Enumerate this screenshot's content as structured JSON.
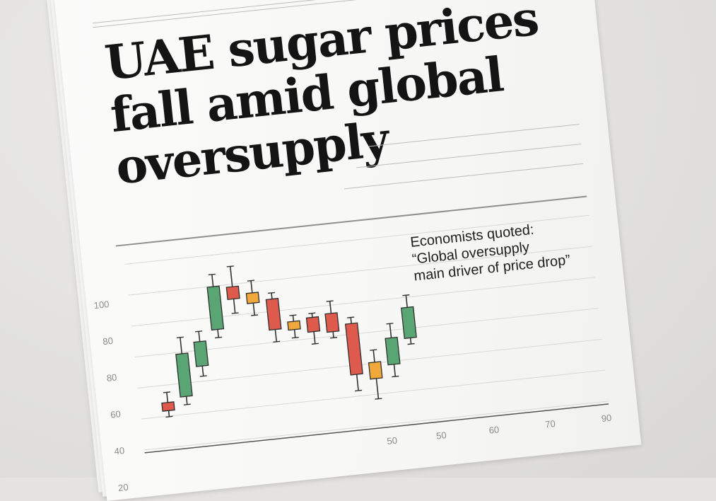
{
  "newspaper": {
    "headline": [
      "UAE sugar prices",
      "fall amid global",
      "oversupply"
    ],
    "callout": [
      "Economists quoted:",
      "“Global oversupply",
      "main driver of price drop”"
    ]
  },
  "colors": {
    "up": "#5aa574",
    "down": "#dd5a4c",
    "neutral": "#f0a83a",
    "paper": "#f9f9f8",
    "ink": "#141414"
  },
  "chart_data": {
    "type": "candlestick",
    "y_tick_labels": [
      "20",
      "40",
      "60",
      "80",
      "80",
      "100"
    ],
    "x_tick_labels": [
      "50",
      "50",
      "60",
      "70",
      "90"
    ],
    "candles": [
      {
        "open": 44,
        "close": 40,
        "high": 49,
        "low": 37,
        "color": "down"
      },
      {
        "open": 46,
        "close": 67,
        "high": 75,
        "low": 42,
        "color": "up"
      },
      {
        "open": 60,
        "close": 72,
        "high": 77,
        "low": 55,
        "color": "up"
      },
      {
        "open": 77,
        "close": 98,
        "high": 104,
        "low": 73,
        "color": "up"
      },
      {
        "open": 97,
        "close": 91,
        "high": 107,
        "low": 84,
        "color": "down"
      },
      {
        "open": 93,
        "close": 88,
        "high": 99,
        "low": 82,
        "color": "neutral"
      },
      {
        "open": 89,
        "close": 74,
        "high": 92,
        "low": 68,
        "color": "down"
      },
      {
        "open": 77,
        "close": 73,
        "high": 80,
        "low": 69,
        "color": "neutral"
      },
      {
        "open": 78,
        "close": 71,
        "high": 80,
        "low": 65,
        "color": "down"
      },
      {
        "open": 79,
        "close": 70,
        "high": 85,
        "low": 67,
        "color": "down"
      },
      {
        "open": 73,
        "close": 48,
        "high": 76,
        "low": 40,
        "color": "down"
      },
      {
        "open": 53,
        "close": 45,
        "high": 59,
        "low": 35,
        "color": "neutral"
      },
      {
        "open": 51,
        "close": 64,
        "high": 71,
        "low": 45,
        "color": "up"
      },
      {
        "open": 63,
        "close": 78,
        "high": 84,
        "low": 60,
        "color": "up"
      }
    ]
  }
}
